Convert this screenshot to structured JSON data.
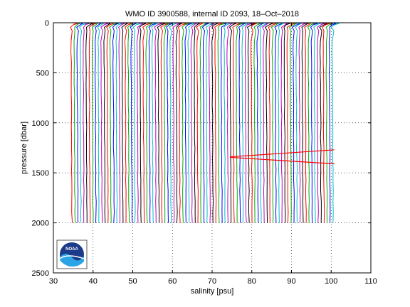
{
  "chart_data": {
    "type": "line",
    "title": "WMO ID 3900588, internal ID 2093, 18–Oct–2018",
    "xlabel": "salinity [psu]",
    "ylabel": "pressure [dbar]",
    "xlim": [
      30,
      110
    ],
    "ylim": [
      0,
      2500
    ],
    "y_reversed": true,
    "grid": true,
    "grid_style": "dotted",
    "xticks": [
      30,
      40,
      50,
      60,
      70,
      80,
      90,
      100,
      110
    ],
    "yticks": [
      0,
      500,
      1000,
      1500,
      2000,
      2500
    ],
    "profiles": {
      "description_of_offset_series": "waterfall of salinity profiles, each shifted in salinity",
      "first_offset_start": 34.8,
      "last_offset_start": 100.6,
      "count": 88,
      "pressure_bottom": 2000,
      "colors": [
        "#ff0000",
        "#00aa00",
        "#0000ff",
        "#00bfbf",
        "#bf00bf",
        "#000000"
      ]
    },
    "highlight": {
      "color": "#ff0000",
      "series": [
        {
          "x": [
            74.5,
            100.8
          ],
          "y": [
            1340,
            1270
          ]
        },
        {
          "x": [
            74.5,
            100.8
          ],
          "y": [
            1345,
            1410
          ]
        }
      ]
    },
    "logo": {
      "text": "NOAA",
      "icon": "noaa-logo-icon"
    }
  }
}
